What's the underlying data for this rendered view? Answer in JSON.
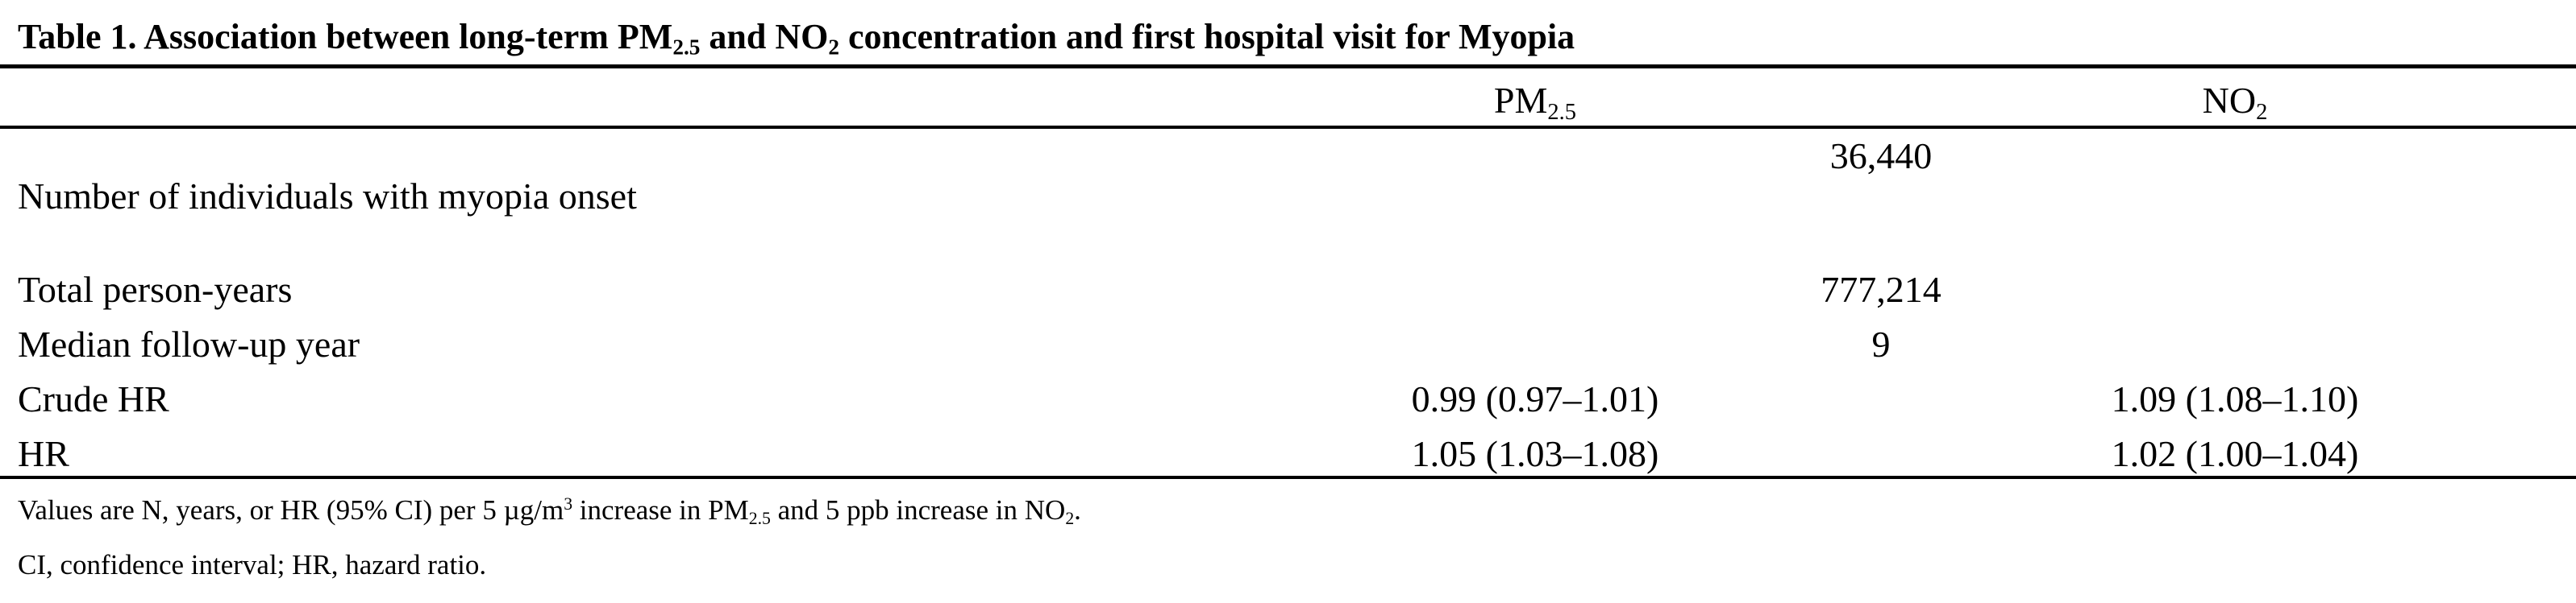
{
  "title": {
    "part1": "Table 1. Association between long-term PM",
    "sub1": "2.5",
    "part2": " and NO",
    "sub2": "2",
    "part3": " concentration and first hospital visit for Myopia"
  },
  "header": {
    "col1_base": "PM",
    "col1_sub": "2.5",
    "col2_base": "NO",
    "col2_sub": "2"
  },
  "rows": [
    {
      "label": "Number of individuals with myopia onset",
      "shared": "36,440"
    },
    {
      "label": "Total person-years",
      "shared": "777,214"
    },
    {
      "label": "Median follow-up year",
      "shared": "9"
    },
    {
      "label": "Crude HR",
      "pm25": "0.99 (0.97–1.01)",
      "no2": "1.09 (1.08–1.10)"
    },
    {
      "label": "HR",
      "pm25": "1.05 (1.03–1.08)",
      "no2": "1.02 (1.00–1.04)"
    }
  ],
  "footnotes": {
    "note1": {
      "t1": "Values are N, years, or HR (95% CI) per 5 µg/m",
      "sup": "3",
      "t2": " increase in PM",
      "sub1": "2.5",
      "t3": " and 5 ppb increase in NO",
      "sub2": "2",
      "t4": "."
    },
    "note2": "CI, confidence interval; HR, hazard ratio."
  }
}
